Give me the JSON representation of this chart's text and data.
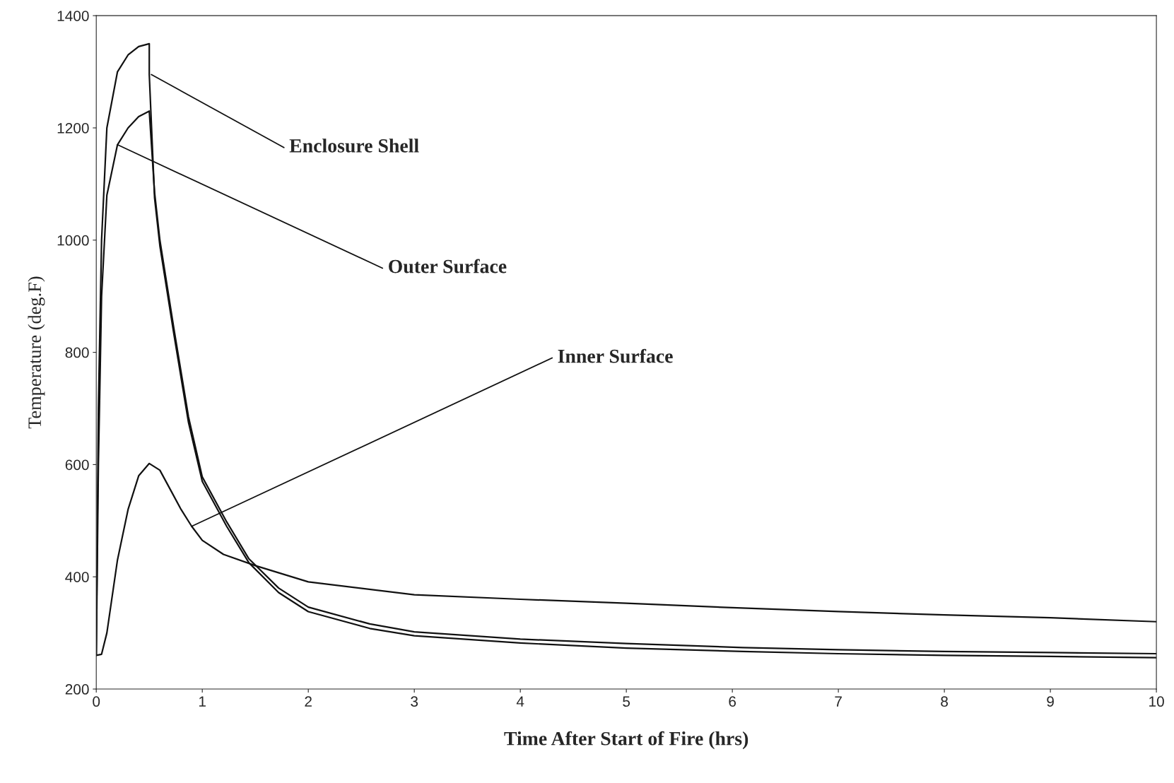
{
  "chart_data": {
    "type": "line",
    "xlabel": "Time After Start of Fire (hrs)",
    "ylabel": "Temperature (deg.F)",
    "xlim": [
      0,
      10
    ],
    "ylim": [
      200,
      1400
    ],
    "xticks": [
      0,
      1,
      2,
      3,
      4,
      5,
      6,
      7,
      8,
      9,
      10
    ],
    "yticks": [
      200,
      400,
      600,
      800,
      1000,
      1200,
      1400
    ],
    "grid": false,
    "series": [
      {
        "color": "#111111",
        "x": [
          0,
          0.02,
          0.05,
          0.1,
          0.2,
          0.3,
          0.4,
          0.5,
          0.5,
          0.55,
          0.6,
          0.73,
          0.87,
          1.0,
          1.23,
          1.44,
          1.72,
          2.0,
          2.58,
          3.0,
          4.0,
          5.0,
          6.1,
          7,
          8,
          9,
          10
        ],
        "values": [
          260,
          700,
          1000,
          1200,
          1300,
          1330,
          1345,
          1350,
          1295,
          1075,
          990,
          835,
          675,
          570,
          490,
          425,
          372,
          338,
          308,
          295,
          282,
          273,
          267,
          263,
          260,
          258,
          256
        ]
      },
      {
        "color": "#111111",
        "x": [
          0,
          0.02,
          0.05,
          0.1,
          0.2,
          0.3,
          0.4,
          0.5,
          0.55,
          0.6,
          0.73,
          0.87,
          1.0,
          1.23,
          1.44,
          1.72,
          2.0,
          2.58,
          3.0,
          4.0,
          5.0,
          6.1,
          7,
          8,
          9,
          10
        ],
        "values": [
          260,
          600,
          900,
          1080,
          1170,
          1200,
          1220,
          1230,
          1085,
          1000,
          845,
          685,
          578,
          498,
          432,
          380,
          346,
          316,
          302,
          289,
          281,
          274,
          270,
          267,
          265,
          263
        ]
      },
      {
        "color": "#111111",
        "x": [
          0,
          0.05,
          0.1,
          0.2,
          0.3,
          0.4,
          0.5,
          0.6,
          0.7,
          0.8,
          0.9,
          1.0,
          1.2,
          1.5,
          2.0,
          3.0,
          4.0,
          5.0,
          6.0,
          7.0,
          8.0,
          9.0,
          10.0
        ],
        "values": [
          260,
          262,
          300,
          430,
          520,
          580,
          602,
          590,
          555,
          520,
          490,
          465,
          440,
          420,
          391,
          368,
          360,
          353,
          345,
          338,
          332,
          327,
          320
        ]
      }
    ],
    "annotations": [
      {
        "text": "Enclosure Shell",
        "x": 0.52,
        "y": 1295
      },
      {
        "text": "Outer Surface",
        "x": 0.2,
        "y": 1170
      },
      {
        "text": "Inner Surface",
        "x": 0.9,
        "y": 490
      }
    ]
  }
}
